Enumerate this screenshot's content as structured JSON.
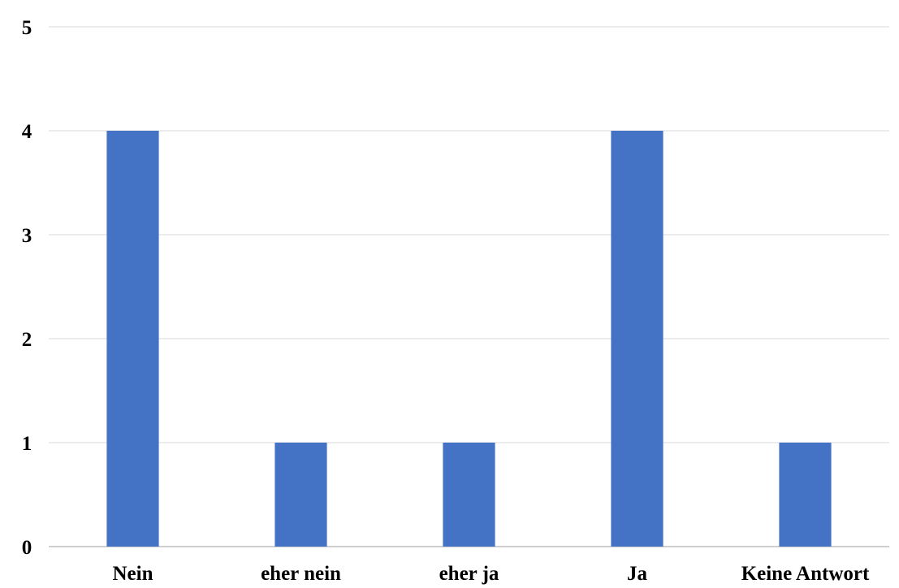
{
  "chart_data": {
    "type": "bar",
    "title": "",
    "xlabel": "",
    "ylabel": "",
    "categories": [
      "Nein",
      "eher nein",
      "eher ja",
      "Ja",
      "Keine Antwort"
    ],
    "values": [
      4,
      1,
      1,
      4,
      1
    ],
    "ylim": [
      0,
      5
    ],
    "yticks": [
      "0",
      "1",
      "2",
      "3",
      "4",
      "5"
    ],
    "grid": true,
    "legend": "none",
    "colors": {
      "bar": "#4472C4",
      "grid": "#D9D9D9",
      "axis": "#BFBFBF"
    }
  }
}
